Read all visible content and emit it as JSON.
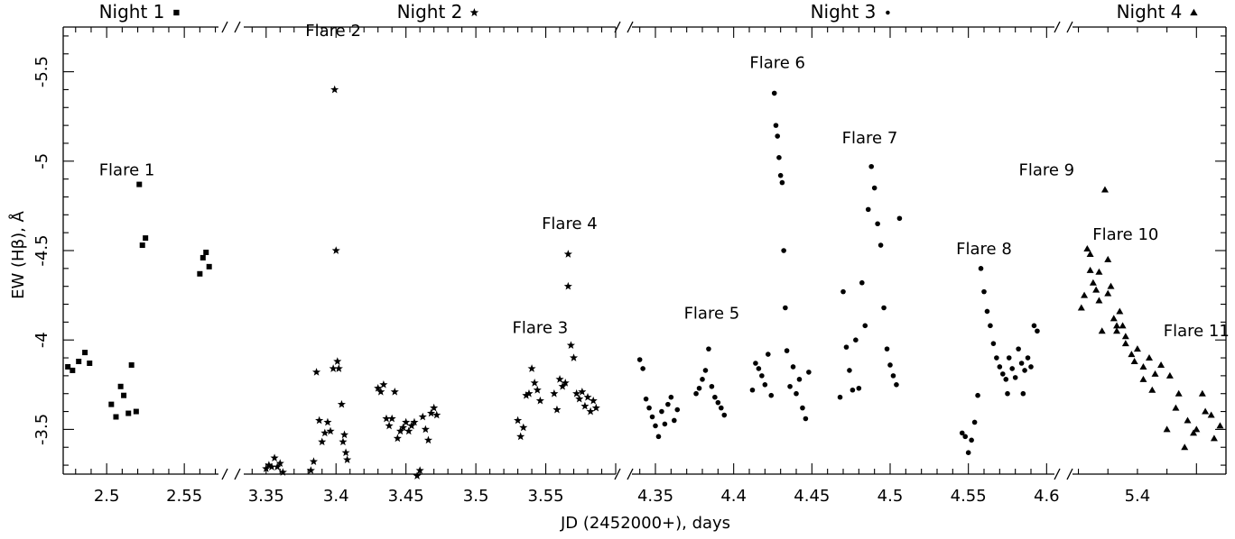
{
  "chart_data": {
    "type": "scatter",
    "title": "",
    "xlabel": "JD (2452000+), days",
    "ylabel": "EW (Hβ),  Å",
    "ylim": [
      -3.25,
      -5.75
    ],
    "y_inverted": true,
    "yticks": [
      "-3.5",
      "-4",
      "-4.5",
      "-5",
      "-5.5"
    ],
    "grid": false,
    "legend_position": "top",
    "segments": [
      {
        "name": "Night 1",
        "marker": "square",
        "xrange": [
          2.472,
          2.572
        ],
        "xticks": [
          "2.5",
          "2.55"
        ],
        "points": [
          [
            2.475,
            -3.85
          ],
          [
            2.478,
            -3.83
          ],
          [
            2.482,
            -3.88
          ],
          [
            2.486,
            -3.93
          ],
          [
            2.489,
            -3.87
          ],
          [
            2.503,
            -3.64
          ],
          [
            2.506,
            -3.57
          ],
          [
            2.509,
            -3.74
          ],
          [
            2.511,
            -3.69
          ],
          [
            2.514,
            -3.59
          ],
          [
            2.516,
            -3.86
          ],
          [
            2.519,
            -3.6
          ],
          [
            2.521,
            -4.87
          ],
          [
            2.523,
            -4.53
          ],
          [
            2.525,
            -4.57
          ],
          [
            2.56,
            -4.37
          ],
          [
            2.562,
            -4.46
          ],
          [
            2.564,
            -4.49
          ],
          [
            2.566,
            -4.41
          ]
        ]
      },
      {
        "name": "Night 2",
        "marker": "star",
        "xrange": [
          3.334,
          3.6
        ],
        "xticks": [
          "3.35",
          "3.4",
          "3.45",
          "3.5",
          "3.55"
        ],
        "points": [
          [
            3.35,
            -3.28
          ],
          [
            3.352,
            -3.3
          ],
          [
            3.354,
            -3.29
          ],
          [
            3.356,
            -3.34
          ],
          [
            3.358,
            -3.29
          ],
          [
            3.36,
            -3.31
          ],
          [
            3.362,
            -3.26
          ],
          [
            3.382,
            -3.27
          ],
          [
            3.384,
            -3.32
          ],
          [
            3.386,
            -3.82
          ],
          [
            3.388,
            -3.55
          ],
          [
            3.39,
            -3.43
          ],
          [
            3.392,
            -3.48
          ],
          [
            3.394,
            -3.54
          ],
          [
            3.396,
            -3.49
          ],
          [
            3.398,
            -3.84
          ],
          [
            3.399,
            -5.4
          ],
          [
            3.4,
            -4.5
          ],
          [
            3.401,
            -3.88
          ],
          [
            3.402,
            -3.84
          ],
          [
            3.404,
            -3.64
          ],
          [
            3.405,
            -3.43
          ],
          [
            3.406,
            -3.47
          ],
          [
            3.407,
            -3.37
          ],
          [
            3.408,
            -3.33
          ],
          [
            3.43,
            -3.73
          ],
          [
            3.432,
            -3.71
          ],
          [
            3.434,
            -3.75
          ],
          [
            3.436,
            -3.56
          ],
          [
            3.438,
            -3.52
          ],
          [
            3.44,
            -3.56
          ],
          [
            3.442,
            -3.71
          ],
          [
            3.444,
            -3.45
          ],
          [
            3.446,
            -3.49
          ],
          [
            3.448,
            -3.51
          ],
          [
            3.45,
            -3.54
          ],
          [
            3.452,
            -3.49
          ],
          [
            3.454,
            -3.52
          ],
          [
            3.456,
            -3.54
          ],
          [
            3.458,
            -3.24
          ],
          [
            3.46,
            -3.27
          ],
          [
            3.462,
            -3.57
          ],
          [
            3.464,
            -3.5
          ],
          [
            3.466,
            -3.44
          ],
          [
            3.468,
            -3.59
          ],
          [
            3.47,
            -3.62
          ],
          [
            3.472,
            -3.58
          ],
          [
            3.53,
            -3.55
          ],
          [
            3.532,
            -3.46
          ],
          [
            3.534,
            -3.51
          ],
          [
            3.536,
            -3.69
          ],
          [
            3.538,
            -3.7
          ],
          [
            3.54,
            -3.84
          ],
          [
            3.542,
            -3.76
          ],
          [
            3.544,
            -3.72
          ],
          [
            3.546,
            -3.66
          ],
          [
            3.556,
            -3.7
          ],
          [
            3.558,
            -3.61
          ],
          [
            3.56,
            -3.78
          ],
          [
            3.562,
            -3.74
          ],
          [
            3.564,
            -3.76
          ],
          [
            3.566,
            -4.48
          ],
          [
            3.566,
            -4.3
          ],
          [
            3.568,
            -3.97
          ],
          [
            3.57,
            -3.9
          ],
          [
            3.572,
            -3.7
          ],
          [
            3.574,
            -3.67
          ],
          [
            3.576,
            -3.71
          ],
          [
            3.578,
            -3.63
          ],
          [
            3.58,
            -3.68
          ],
          [
            3.582,
            -3.6
          ],
          [
            3.584,
            -3.66
          ],
          [
            3.586,
            -3.62
          ]
        ]
      },
      {
        "name": "Night 3",
        "marker": "circle",
        "xrange": [
          4.335,
          4.605
        ],
        "xticks": [
          "4.35",
          "4.4",
          "4.45",
          "4.5",
          "4.55",
          "4.6"
        ],
        "points": [
          [
            4.34,
            -3.89
          ],
          [
            4.342,
            -3.84
          ],
          [
            4.344,
            -3.67
          ],
          [
            4.346,
            -3.62
          ],
          [
            4.348,
            -3.57
          ],
          [
            4.35,
            -3.52
          ],
          [
            4.352,
            -3.46
          ],
          [
            4.354,
            -3.6
          ],
          [
            4.356,
            -3.53
          ],
          [
            4.358,
            -3.64
          ],
          [
            4.36,
            -3.68
          ],
          [
            4.362,
            -3.55
          ],
          [
            4.364,
            -3.61
          ],
          [
            4.376,
            -3.7
          ],
          [
            4.378,
            -3.73
          ],
          [
            4.38,
            -3.78
          ],
          [
            4.382,
            -3.83
          ],
          [
            4.384,
            -3.95
          ],
          [
            4.386,
            -3.74
          ],
          [
            4.388,
            -3.68
          ],
          [
            4.39,
            -3.65
          ],
          [
            4.392,
            -3.62
          ],
          [
            4.394,
            -3.58
          ],
          [
            4.412,
            -3.72
          ],
          [
            4.414,
            -3.87
          ],
          [
            4.416,
            -3.84
          ],
          [
            4.418,
            -3.8
          ],
          [
            4.42,
            -3.75
          ],
          [
            4.422,
            -3.92
          ],
          [
            4.424,
            -3.69
          ],
          [
            4.426,
            -5.38
          ],
          [
            4.427,
            -5.2
          ],
          [
            4.428,
            -5.14
          ],
          [
            4.429,
            -5.02
          ],
          [
            4.43,
            -4.92
          ],
          [
            4.431,
            -4.88
          ],
          [
            4.432,
            -4.5
          ],
          [
            4.433,
            -4.18
          ],
          [
            4.434,
            -3.94
          ],
          [
            4.436,
            -3.74
          ],
          [
            4.438,
            -3.85
          ],
          [
            4.44,
            -3.7
          ],
          [
            4.442,
            -3.78
          ],
          [
            4.444,
            -3.62
          ],
          [
            4.446,
            -3.56
          ],
          [
            4.448,
            -3.82
          ],
          [
            4.468,
            -3.68
          ],
          [
            4.47,
            -4.27
          ],
          [
            4.472,
            -3.96
          ],
          [
            4.474,
            -3.83
          ],
          [
            4.476,
            -3.72
          ],
          [
            4.478,
            -4.0
          ],
          [
            4.48,
            -3.73
          ],
          [
            4.482,
            -4.32
          ],
          [
            4.484,
            -4.08
          ],
          [
            4.486,
            -4.73
          ],
          [
            4.488,
            -4.97
          ],
          [
            4.49,
            -4.85
          ],
          [
            4.492,
            -4.65
          ],
          [
            4.494,
            -4.53
          ],
          [
            4.496,
            -4.18
          ],
          [
            4.498,
            -3.95
          ],
          [
            4.5,
            -3.86
          ],
          [
            4.502,
            -3.8
          ],
          [
            4.504,
            -3.75
          ],
          [
            4.506,
            -4.68
          ],
          [
            4.546,
            -3.48
          ],
          [
            4.548,
            -3.46
          ],
          [
            4.55,
            -3.37
          ],
          [
            4.552,
            -3.44
          ],
          [
            4.554,
            -3.54
          ],
          [
            4.556,
            -3.69
          ],
          [
            4.558,
            -4.4
          ],
          [
            4.56,
            -4.27
          ],
          [
            4.562,
            -4.16
          ],
          [
            4.564,
            -4.08
          ],
          [
            4.566,
            -3.98
          ],
          [
            4.568,
            -3.9
          ],
          [
            4.57,
            -3.85
          ],
          [
            4.572,
            -3.81
          ],
          [
            4.574,
            -3.78
          ],
          [
            4.576,
            -3.9
          ],
          [
            4.578,
            -3.84
          ],
          [
            4.58,
            -3.79
          ],
          [
            4.582,
            -3.95
          ],
          [
            4.584,
            -3.87
          ],
          [
            4.586,
            -3.83
          ],
          [
            4.588,
            -3.9
          ],
          [
            4.59,
            -3.85
          ],
          [
            4.592,
            -4.08
          ],
          [
            4.594,
            -4.05
          ],
          [
            4.575,
            -3.7
          ],
          [
            4.585,
            -3.7
          ]
        ]
      },
      {
        "name": "Night 4",
        "marker": "triangle",
        "xrange": [
          4.608,
          4.66
        ],
        "xticks": [
          "4.63"
        ],
        "xtick_labels": [
          "5.4"
        ],
        "points": [
          [
            4.611,
            -4.18
          ],
          [
            4.612,
            -4.25
          ],
          [
            4.613,
            -4.51
          ],
          [
            4.614,
            -4.39
          ],
          [
            4.615,
            -4.32
          ],
          [
            4.616,
            -4.28
          ],
          [
            4.617,
            -4.22
          ],
          [
            4.618,
            -4.05
          ],
          [
            4.619,
            -4.84
          ],
          [
            4.62,
            -4.45
          ],
          [
            4.621,
            -4.3
          ],
          [
            4.622,
            -4.12
          ],
          [
            4.623,
            -4.08
          ],
          [
            4.624,
            -4.16
          ],
          [
            4.625,
            -4.08
          ],
          [
            4.614,
            -4.48
          ],
          [
            4.617,
            -4.38
          ],
          [
            4.62,
            -4.26
          ],
          [
            4.623,
            -4.05
          ],
          [
            4.626,
            -4.02
          ],
          [
            4.628,
            -3.92
          ],
          [
            4.63,
            -3.95
          ],
          [
            4.632,
            -3.85
          ],
          [
            4.634,
            -3.9
          ],
          [
            4.636,
            -3.81
          ],
          [
            4.626,
            -3.98
          ],
          [
            4.629,
            -3.88
          ],
          [
            4.632,
            -3.78
          ],
          [
            4.635,
            -3.72
          ],
          [
            4.638,
            -3.86
          ],
          [
            4.641,
            -3.8
          ],
          [
            4.644,
            -3.7
          ],
          [
            4.647,
            -3.55
          ],
          [
            4.65,
            -3.5
          ],
          [
            4.653,
            -3.6
          ],
          [
            4.656,
            -3.45
          ],
          [
            4.64,
            -3.5
          ],
          [
            4.643,
            -3.62
          ],
          [
            4.646,
            -3.4
          ],
          [
            4.649,
            -3.48
          ],
          [
            4.652,
            -3.7
          ],
          [
            4.655,
            -3.58
          ],
          [
            4.658,
            -3.52
          ]
        ]
      }
    ],
    "annotations": [
      {
        "text": "Flare 1",
        "x": 2.513,
        "y": -4.92
      },
      {
        "text": "Flare 2",
        "x": 3.398,
        "y": -5.7
      },
      {
        "text": "Flare 3",
        "x": 3.546,
        "y": -4.04
      },
      {
        "text": "Flare 4",
        "x": 3.567,
        "y": -4.62
      },
      {
        "text": "Flare 5",
        "x": 4.386,
        "y": -4.12
      },
      {
        "text": "Flare 6",
        "x": 4.428,
        "y": -5.52
      },
      {
        "text": "Flare 7",
        "x": 4.487,
        "y": -5.1
      },
      {
        "text": "Flare 8",
        "x": 4.56,
        "y": -4.48
      },
      {
        "text": "Flare 9",
        "x": 4.6,
        "y": -4.92
      },
      {
        "text": "Flare 10",
        "x": 4.626,
        "y": -4.56
      },
      {
        "text": "Flare 11",
        "x": 4.65,
        "y": -4.02
      }
    ],
    "top_labels": [
      {
        "text": "Night 1",
        "marker": "square"
      },
      {
        "text": "Night 2",
        "marker": "star"
      },
      {
        "text": "Night 3",
        "marker": "circle"
      },
      {
        "text": "Night 4",
        "marker": "triangle"
      }
    ]
  }
}
